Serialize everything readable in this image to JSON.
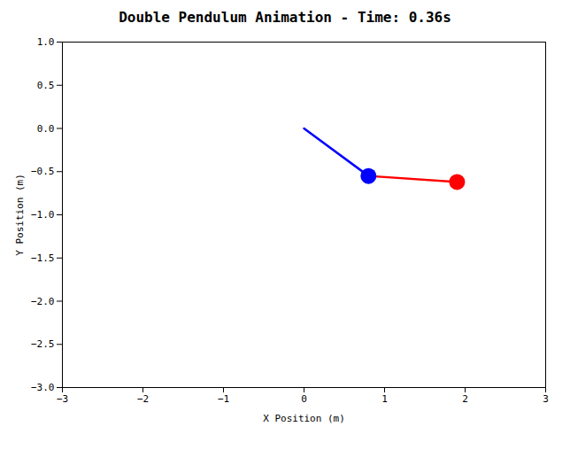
{
  "chart_data": {
    "type": "line",
    "title": "Double Pendulum Animation - Time: 0.36s",
    "xlabel": "X Position (m)",
    "ylabel": "Y Position (m)",
    "xlim": [
      -3,
      3
    ],
    "ylim": [
      -3,
      1
    ],
    "xticks": [
      -3,
      -2,
      -1,
      0,
      1,
      2,
      3
    ],
    "yticks": [
      {
        "value": -3,
        "label": "−3.0"
      },
      -2.5,
      {
        "value": -2,
        "label": "−2.0"
      },
      -1.5,
      {
        "value": -1,
        "label": "−1.0"
      },
      -0.5,
      {
        "value": 0,
        "label": "0.0"
      },
      0.5,
      {
        "value": 1,
        "label": "1.0"
      }
    ],
    "grid": false,
    "series": [
      {
        "type": "line",
        "color": "#0000FF",
        "x": [
          0,
          0.8
        ],
        "values": [
          0,
          -0.55
        ]
      },
      {
        "type": "line",
        "color": "#FF0000",
        "x": [
          0.8,
          1.9
        ],
        "values": [
          -0.55,
          -0.62
        ]
      },
      {
        "type": "scatter",
        "color": "#0000FF",
        "marker": "circle",
        "x": [
          0.8
        ],
        "values": [
          -0.55
        ]
      },
      {
        "type": "scatter",
        "color": "#FF0000",
        "marker": "circle",
        "x": [
          1.9
        ],
        "values": [
          -0.62
        ]
      }
    ]
  }
}
